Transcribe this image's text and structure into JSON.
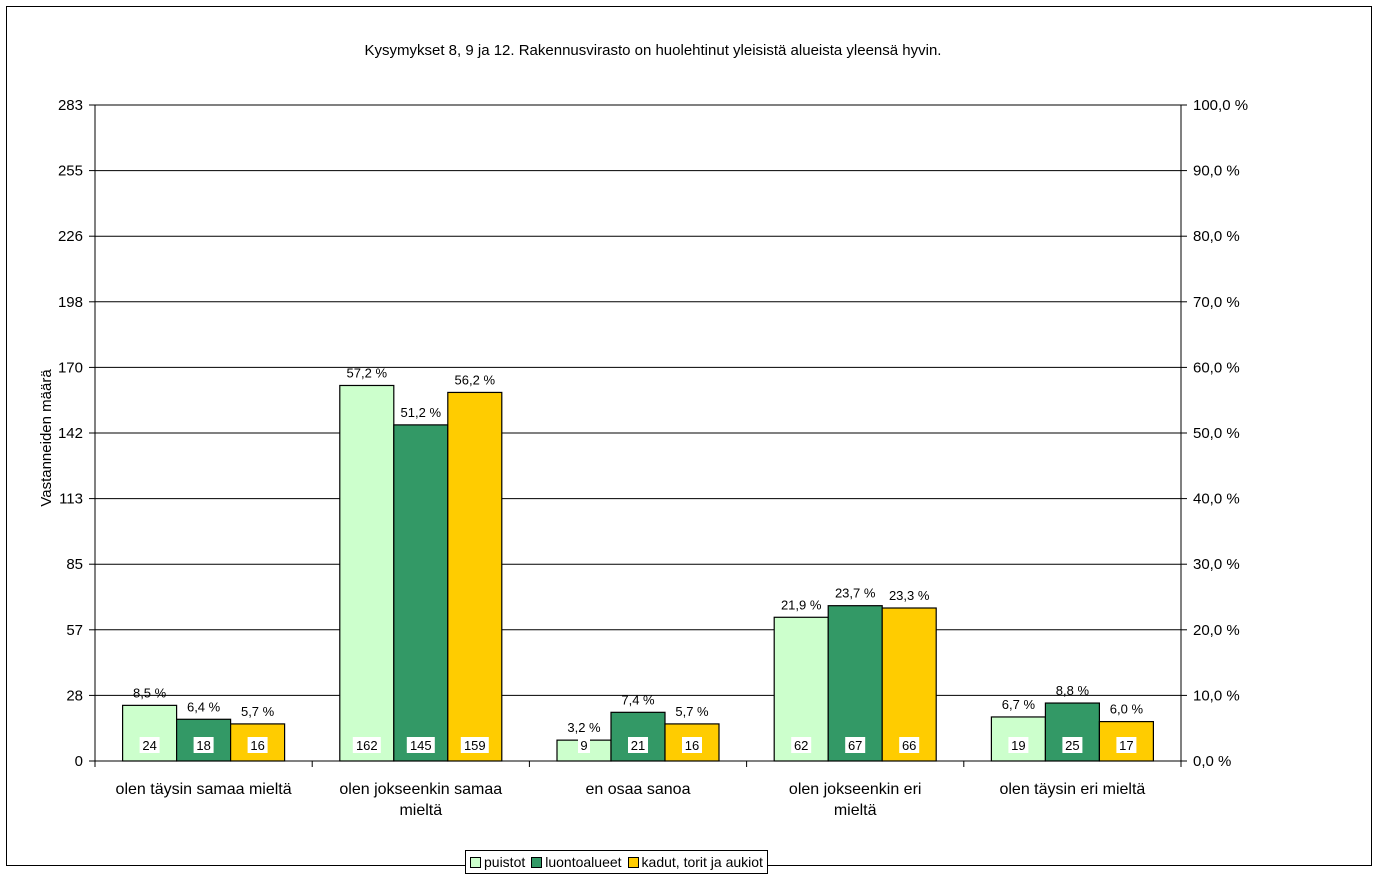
{
  "chart_data": {
    "type": "bar",
    "title": "Kysymykset 8, 9 ja 12. Rakennusvirasto on huolehtinut yleisistä alueista yleensä hyvin.",
    "ylabel": "Vastanneiden määrä",
    "ylim": [
      0,
      283
    ],
    "y_ticks": [
      "0",
      "28",
      "57",
      "85",
      "113",
      "142",
      "170",
      "198",
      "226",
      "255",
      "283"
    ],
    "y2lim": [
      0,
      100
    ],
    "y2_ticks": [
      "0,0 %",
      "10,0 %",
      "20,0 %",
      "30,0 %",
      "40,0 %",
      "50,0 %",
      "60,0 %",
      "70,0 %",
      "80,0 %",
      "90,0 %",
      "100,0 %"
    ],
    "grid": true,
    "legend_position": "bottom",
    "categories": [
      [
        "olen täysin samaa mieltä"
      ],
      [
        "olen jokseenkin samaa",
        "mieltä"
      ],
      [
        "en osaa sanoa"
      ],
      [
        "olen jokseenkin eri",
        "mieltä"
      ],
      [
        "olen täysin eri mieltä"
      ]
    ],
    "series": [
      {
        "name": "puistot",
        "color": "#ccffcc",
        "values": [
          24,
          162,
          9,
          62,
          19
        ],
        "percent_labels": [
          "8,5 %",
          "57,2 %",
          "3,2 %",
          "21,9 %",
          "6,7 %"
        ]
      },
      {
        "name": "luontoalueet",
        "color": "#339966",
        "values": [
          18,
          145,
          21,
          67,
          25
        ],
        "percent_labels": [
          "6,4 %",
          "51,2 %",
          "7,4 %",
          "23,7 %",
          "8,8 %"
        ]
      },
      {
        "name": "kadut, torit ja aukiot",
        "color": "#ffcc00",
        "values": [
          16,
          159,
          16,
          66,
          17
        ],
        "percent_labels": [
          "5,7 %",
          "56,2 %",
          "5,7 %",
          "23,3 %",
          "6,0 %"
        ]
      }
    ]
  }
}
